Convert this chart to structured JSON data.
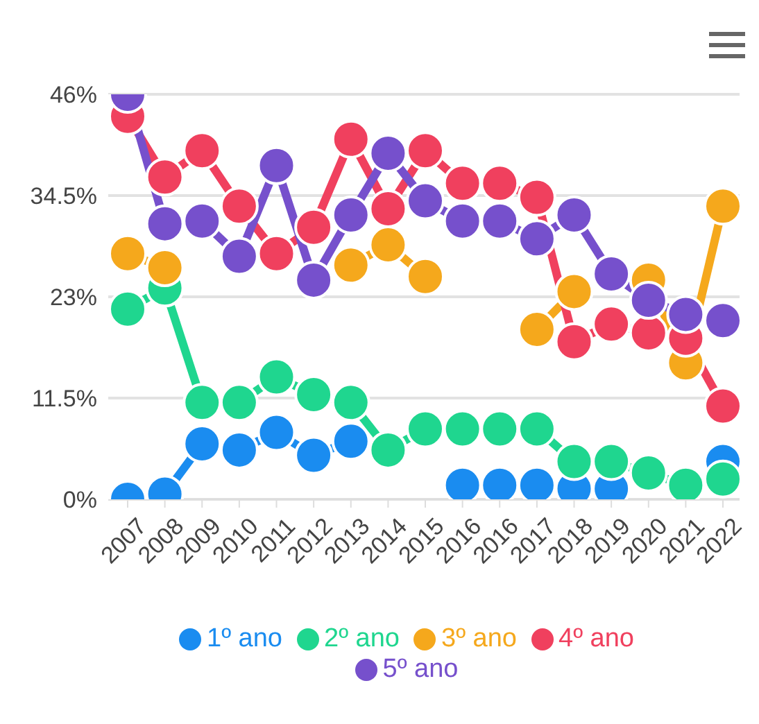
{
  "chart_data": {
    "type": "line",
    "categories": [
      "2007",
      "2008",
      "2009",
      "2010",
      "2011",
      "2012",
      "2013",
      "2014",
      "2015",
      "2016",
      "2016",
      "2017",
      "2018",
      "2019",
      "2020",
      "2021",
      "2022"
    ],
    "series": [
      {
        "name": "1º ano",
        "color": "#1a8cf0",
        "values": [
          0,
          0.6,
          6.3,
          5.6,
          7.6,
          5,
          6.6,
          null,
          null,
          1.6,
          1.6,
          1.6,
          1.2,
          1.2,
          null,
          null,
          4.3
        ]
      },
      {
        "name": "2º ano",
        "color": "#1fd68f",
        "values": [
          21.6,
          24,
          11,
          11,
          13.9,
          11.9,
          11,
          5.6,
          8,
          8,
          8,
          8,
          4.3,
          4.3,
          3,
          1.6,
          2.3
        ]
      },
      {
        "name": "3º ano",
        "color": "#f5a81c",
        "values": [
          27.9,
          26.3,
          null,
          null,
          null,
          null,
          26.6,
          28.9,
          25.3,
          null,
          null,
          19.3,
          23.6,
          null,
          24.9,
          15.5,
          33.3
        ]
      },
      {
        "name": "4º ano",
        "color": "#f0405e",
        "values": [
          43.5,
          36.6,
          39.6,
          33.3,
          27.9,
          30.9,
          40.9,
          33,
          39.6,
          35.9,
          35.9,
          34.3,
          17.9,
          19.9,
          18.9,
          18.3,
          10.6
        ]
      },
      {
        "name": "5º ano",
        "color": "#7650cc",
        "values": [
          46,
          31.3,
          31.6,
          27.6,
          37.9,
          24.9,
          32.3,
          39.3,
          33.9,
          31.6,
          31.6,
          29.6,
          32.3,
          25.6,
          22.6,
          21,
          20.3
        ]
      }
    ],
    "ylim": [
      0,
      46
    ],
    "yticks": [
      {
        "value": 0,
        "label": "0%"
      },
      {
        "value": 11.5,
        "label": "11.5%"
      },
      {
        "value": 23,
        "label": "23%"
      },
      {
        "value": 34.5,
        "label": "34.5%"
      },
      {
        "value": 46,
        "label": "46%"
      }
    ],
    "grid": "y",
    "legend": "bottom",
    "marker": "circle",
    "line_style": "solid"
  }
}
